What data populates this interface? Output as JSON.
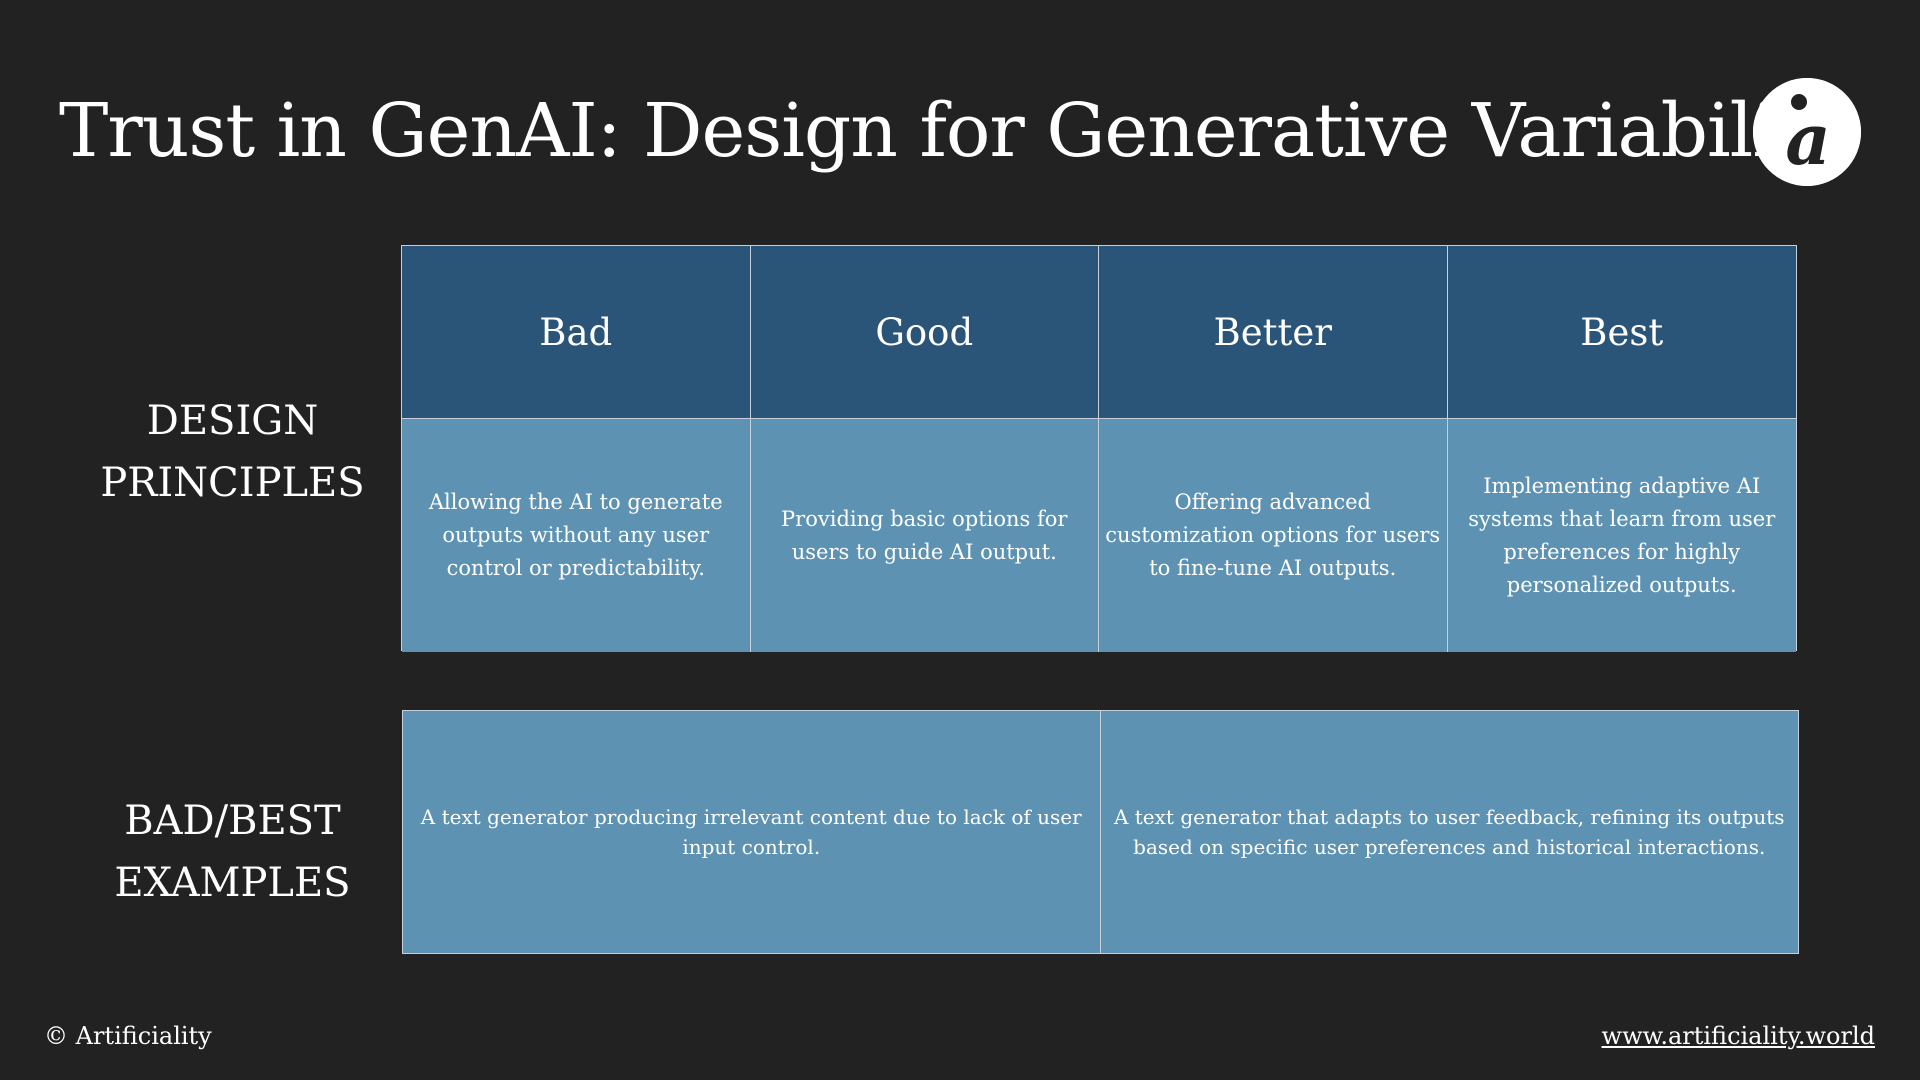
{
  "title": "Trust in GenAI: Design for Generative Variability",
  "logo": {
    "icon": "artificiality-logo-icon",
    "glyph": "a",
    "background": "#ffffff",
    "foreground": "#222222"
  },
  "rows": {
    "principles_line1": "DESIGN",
    "principles_line2": "PRINCIPLES",
    "examples_line1": "BAD/BEST",
    "examples_line2": "EXAMPLES"
  },
  "principles": {
    "headers": [
      "Bad",
      "Good",
      "Better",
      "Best"
    ],
    "descriptions": [
      "Allowing the AI to generate outputs without any user control or predictability.",
      "Providing basic options for users to guide AI output.",
      "Offering advanced customization options for users to fine-tune AI outputs.",
      "Implementing adaptive AI systems that learn from user preferences for highly personalized outputs."
    ]
  },
  "examples": {
    "bad": "A text generator producing irrelevant content due to lack of user input control.",
    "best": "A text generator that adapts to user feedback, refining its outputs based on specific user preferences and historical interactions."
  },
  "footer": {
    "copyright": "© Artificiality",
    "url": "www.artificiality.world"
  },
  "colors": {
    "background": "#222222",
    "header_fill": "#2b5479",
    "cell_fill": "#5d92b2",
    "grid_line": "#c6d0da"
  }
}
